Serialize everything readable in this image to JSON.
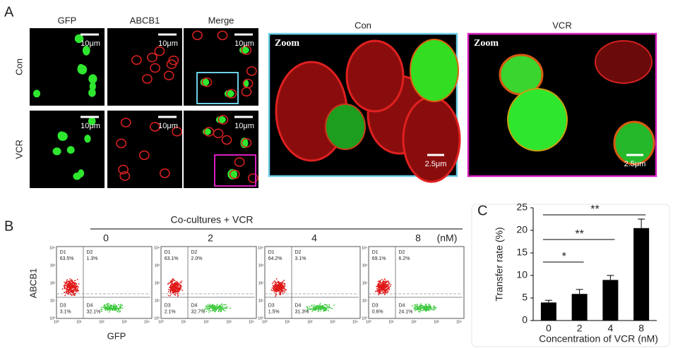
{
  "panel_a": {
    "label": "A",
    "columns": [
      "GFP",
      "ABCB1",
      "Merge"
    ],
    "rows": [
      "Con",
      "VCR"
    ],
    "scale_bar": "10μm",
    "zooms": [
      {
        "title": "Con",
        "tag": "Zoom",
        "scale_bar": "2.5μm"
      },
      {
        "title": "VCR",
        "tag": "Zoom",
        "scale_bar": "2.5μm"
      }
    ]
  },
  "panel_b": {
    "label": "B",
    "header": "Co-cultures + VCR",
    "concentrations": [
      "0",
      "2",
      "4",
      "8"
    ],
    "unit": "(nM)",
    "y_label": "ABCB1",
    "x_label": "GFP",
    "axis_ticks": [
      "10⁰",
      "10¹",
      "10²",
      "10³",
      "10⁴"
    ],
    "plots": [
      {
        "quadrants": [
          {
            "name": "D1",
            "value": "63.5%"
          },
          {
            "name": "D2",
            "value": "1.3%"
          },
          {
            "name": "D3",
            "value": "3.1%"
          },
          {
            "name": "D4",
            "value": "32.1%"
          }
        ]
      },
      {
        "quadrants": [
          {
            "name": "D1",
            "value": "63.1%"
          },
          {
            "name": "D2",
            "value": "2.0%"
          },
          {
            "name": "D3",
            "value": "2.1%"
          },
          {
            "name": "D4",
            "value": "32.7%"
          }
        ]
      },
      {
        "quadrants": [
          {
            "name": "D1",
            "value": "64.2%"
          },
          {
            "name": "D2",
            "value": "3.1%"
          },
          {
            "name": "D3",
            "value": "1.5%"
          },
          {
            "name": "D4",
            "value": "31.3%"
          }
        ]
      },
      {
        "quadrants": [
          {
            "name": "D1",
            "value": "69.1%"
          },
          {
            "name": "D2",
            "value": "6.2%"
          },
          {
            "name": "D3",
            "value": "0.6%"
          },
          {
            "name": "D4",
            "value": "24.1%"
          }
        ]
      }
    ]
  },
  "chart_data": {
    "type": "bar",
    "panel_label": "C",
    "y_label": "Transfer rate (%)",
    "x_label": "Concentration of VCR (nM)",
    "categories": [
      "0",
      "2",
      "4",
      "8"
    ],
    "values": [
      4,
      5.9,
      9,
      20.5
    ],
    "errors": [
      0.5,
      1,
      1,
      2
    ],
    "color": "#000000",
    "ylim": [
      0,
      25
    ],
    "yticks": [
      0,
      5,
      10,
      15,
      20,
      25
    ],
    "significance": [
      "*",
      "**",
      "**"
    ]
  }
}
